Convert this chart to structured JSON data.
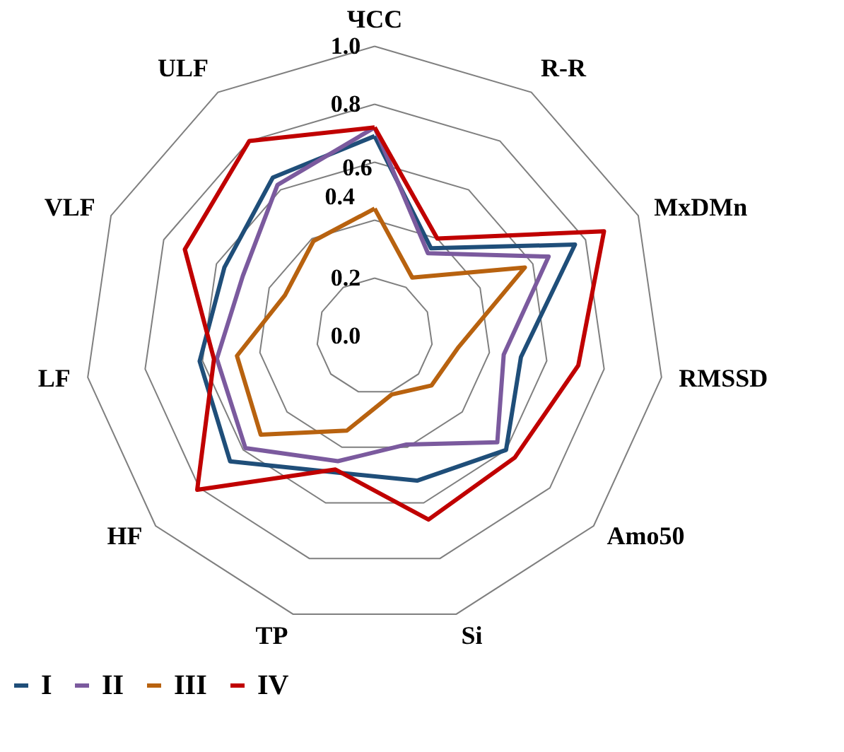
{
  "chart_data": {
    "type": "radar",
    "categories": [
      "ЧСС",
      "R-R",
      "MxDMn",
      "RMSSD",
      "Amo50",
      "Si",
      "TP",
      "HF",
      "LF",
      "VLF",
      "ULF"
    ],
    "series": [
      {
        "name": "I",
        "color": "#1f4e79",
        "values": [
          0.69,
          0.36,
          0.76,
          0.51,
          0.6,
          0.52,
          0.49,
          0.66,
          0.61,
          0.57,
          0.65
        ]
      },
      {
        "name": "II",
        "color": "#7b5a9e",
        "values": [
          0.72,
          0.34,
          0.66,
          0.45,
          0.56,
          0.39,
          0.45,
          0.59,
          0.55,
          0.5,
          0.62
        ]
      },
      {
        "name": "III",
        "color": "#b8620f",
        "values": [
          0.44,
          0.24,
          0.57,
          0.29,
          0.26,
          0.21,
          0.34,
          0.52,
          0.48,
          0.34,
          0.39
        ]
      },
      {
        "name": "IV",
        "color": "#c00000",
        "values": [
          0.72,
          0.4,
          0.87,
          0.71,
          0.64,
          0.66,
          0.48,
          0.81,
          0.56,
          0.72,
          0.8
        ]
      }
    ],
    "ylim": [
      0,
      1
    ],
    "yticks": [
      {
        "value": 0,
        "label": "0.0"
      },
      0.2,
      0.4,
      0.6,
      0.8,
      {
        "value": 1,
        "label": "1.0"
      }
    ],
    "grid": true,
    "legend": "bottom"
  }
}
